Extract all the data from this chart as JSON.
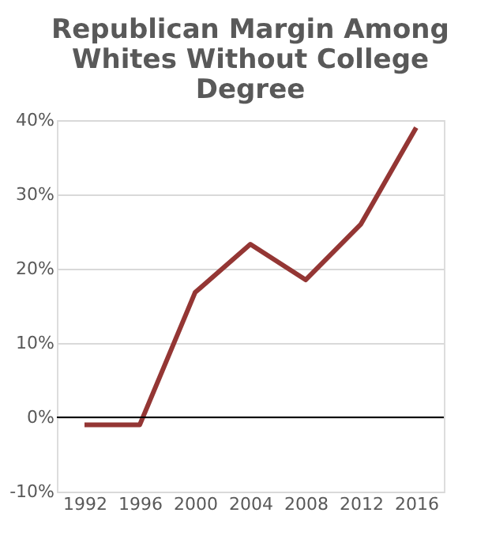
{
  "chart_data": {
    "type": "line",
    "title": "Republican Margin Among Whites Without College Degree",
    "categories": [
      "1992",
      "1996",
      "2000",
      "2004",
      "2008",
      "2012",
      "2016"
    ],
    "series": [
      {
        "color": "#943634",
        "values": [
          -1.0,
          -1.0,
          16.8,
          23.3,
          18.5,
          26.0,
          39.0
        ]
      }
    ],
    "ylim": [
      -10,
      40
    ],
    "yticks": [
      {
        "value": -10,
        "label": "-10%"
      },
      {
        "value": 0,
        "label": "0%"
      },
      {
        "value": 10,
        "label": "10%"
      },
      {
        "value": 20,
        "label": "20%"
      },
      {
        "value": 30,
        "label": "30%"
      },
      {
        "value": 40,
        "label": "40%"
      }
    ],
    "ref_lines": [
      {
        "axis": "y",
        "value": 0,
        "color": "#000000"
      }
    ],
    "grid": "y",
    "marker": "none",
    "line_style": "solid"
  }
}
